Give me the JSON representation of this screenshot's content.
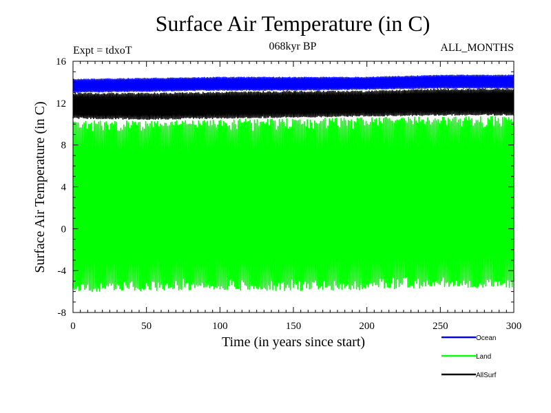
{
  "chart_data": {
    "type": "line",
    "title": "Surface Air Temperature (in C)",
    "subtitle": "068kyr BP",
    "annotation_left": "Expt = tdxoT",
    "annotation_right": "ALL_MONTHS",
    "xlabel": "Time (in years since start)",
    "ylabel": "Surface Air Temperature (in C)",
    "xlim": [
      0,
      300
    ],
    "ylim": [
      -8,
      16
    ],
    "x_ticks": [
      0,
      50,
      100,
      150,
      200,
      250,
      300
    ],
    "y_ticks": [
      -8,
      -4,
      0,
      4,
      8,
      12,
      16
    ],
    "grid": false,
    "legend_position": "bottom-right, below plot",
    "x_step": 0.0833,
    "series": [
      {
        "name": "Ocean",
        "color": "#0000ff",
        "envelope_x": [
          0,
          50,
          100,
          150,
          200,
          250,
          300
        ],
        "max": [
          14.3,
          14.4,
          14.5,
          14.5,
          14.5,
          14.7,
          14.7
        ],
        "min": [
          13.0,
          13.1,
          13.2,
          13.2,
          13.3,
          13.4,
          13.4
        ]
      },
      {
        "name": "Land",
        "color": "#00ff00",
        "envelope_x": [
          0,
          50,
          100,
          150,
          200,
          250,
          300
        ],
        "max": [
          10.6,
          10.6,
          10.7,
          10.8,
          10.9,
          11.0,
          11.0
        ],
        "min": [
          -6.3,
          -6.2,
          -6.1,
          -6.2,
          -6.1,
          -5.9,
          -5.9
        ]
      },
      {
        "name": "AllSurf",
        "color": "#000000",
        "envelope_x": [
          0,
          50,
          100,
          150,
          200,
          250,
          300
        ],
        "max": [
          13.0,
          13.0,
          13.1,
          13.2,
          13.2,
          13.4,
          13.4
        ],
        "min": [
          10.5,
          10.4,
          10.5,
          10.6,
          10.7,
          10.8,
          10.8
        ]
      }
    ]
  }
}
